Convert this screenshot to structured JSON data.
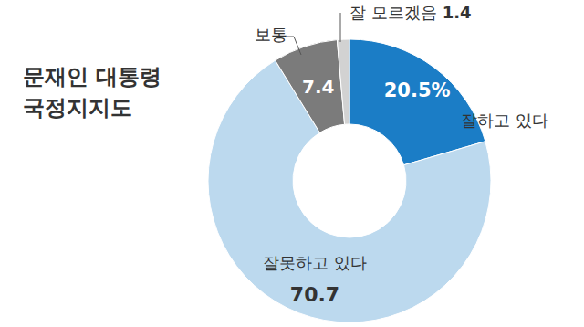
{
  "chart_data": {
    "type": "pie",
    "title": "문재인 대통령 국정지지도",
    "categories": [
      "잘하고 있다",
      "잘못하고 있다",
      "보통",
      "잘 모르겠음"
    ],
    "values": [
      20.5,
      70.7,
      7.4,
      1.4
    ],
    "value_labels": [
      "20.5%",
      "70.7",
      "7.4",
      "1.4"
    ],
    "colors": [
      "#1b7dc6",
      "#bcd9ee",
      "#7b7b7b",
      "#d2d2d2"
    ],
    "data_labels": true
  }
}
